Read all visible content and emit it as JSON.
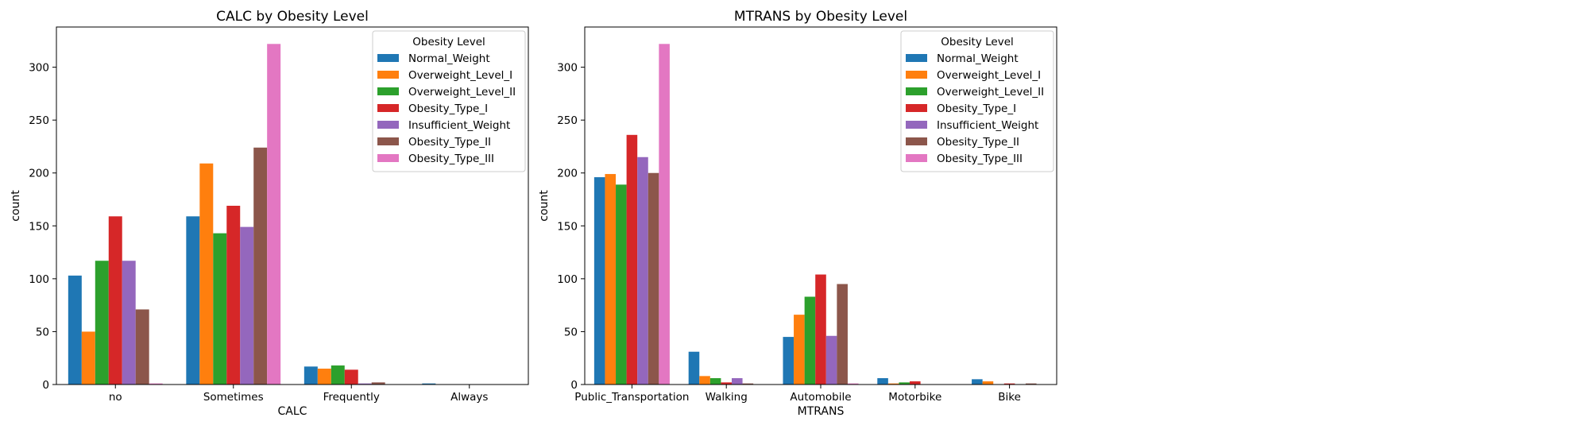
{
  "chart_data": [
    {
      "type": "bar",
      "title": "CALC by Obesity Level",
      "xlabel": "CALC",
      "ylabel": "count",
      "categories": [
        "no",
        "Sometimes",
        "Frequently",
        "Always"
      ],
      "ylim": [
        0,
        338
      ],
      "yticks": [
        0,
        50,
        100,
        150,
        200,
        250,
        300
      ],
      "legend": {
        "title": "Obesity Level",
        "placement": "upper right"
      },
      "series": [
        {
          "name": "Normal_Weight",
          "color": "#1f77b4",
          "values": [
            103,
            159,
            17,
            1
          ]
        },
        {
          "name": "Overweight_Level_I",
          "color": "#ff7f0e",
          "values": [
            50,
            209,
            15,
            0
          ]
        },
        {
          "name": "Overweight_Level_II",
          "color": "#2ca02c",
          "values": [
            117,
            143,
            18,
            0
          ]
        },
        {
          "name": "Obesity_Type_I",
          "color": "#d62728",
          "values": [
            159,
            169,
            14,
            0
          ]
        },
        {
          "name": "Insufficient_Weight",
          "color": "#9467bd",
          "values": [
            117,
            149,
            1,
            0
          ]
        },
        {
          "name": "Obesity_Type_II",
          "color": "#8c564b",
          "values": [
            71,
            224,
            2,
            0
          ]
        },
        {
          "name": "Obesity_Type_III",
          "color": "#e377c2",
          "values": [
            1,
            322,
            0,
            0
          ]
        }
      ]
    },
    {
      "type": "bar",
      "title": "MTRANS by Obesity Level",
      "xlabel": "MTRANS",
      "ylabel": "count",
      "categories": [
        "Public_Transportation",
        "Walking",
        "Automobile",
        "Motorbike",
        "Bike"
      ],
      "ylim": [
        0,
        338
      ],
      "yticks": [
        0,
        50,
        100,
        150,
        200,
        250,
        300
      ],
      "legend": {
        "title": "Obesity Level",
        "placement": "upper right"
      },
      "series": [
        {
          "name": "Normal_Weight",
          "color": "#1f77b4",
          "values": [
            196,
            31,
            45,
            6,
            5
          ]
        },
        {
          "name": "Overweight_Level_I",
          "color": "#ff7f0e",
          "values": [
            199,
            8,
            66,
            1,
            3
          ]
        },
        {
          "name": "Overweight_Level_II",
          "color": "#2ca02c",
          "values": [
            189,
            6,
            83,
            2,
            0
          ]
        },
        {
          "name": "Obesity_Type_I",
          "color": "#d62728",
          "values": [
            236,
            2,
            104,
            3,
            1
          ]
        },
        {
          "name": "Insufficient_Weight",
          "color": "#9467bd",
          "values": [
            215,
            6,
            46,
            0,
            0
          ]
        },
        {
          "name": "Obesity_Type_II",
          "color": "#8c564b",
          "values": [
            200,
            1,
            95,
            0,
            1
          ]
        },
        {
          "name": "Obesity_Type_III",
          "color": "#e377c2",
          "values": [
            322,
            0,
            1,
            0,
            0
          ]
        }
      ]
    }
  ]
}
